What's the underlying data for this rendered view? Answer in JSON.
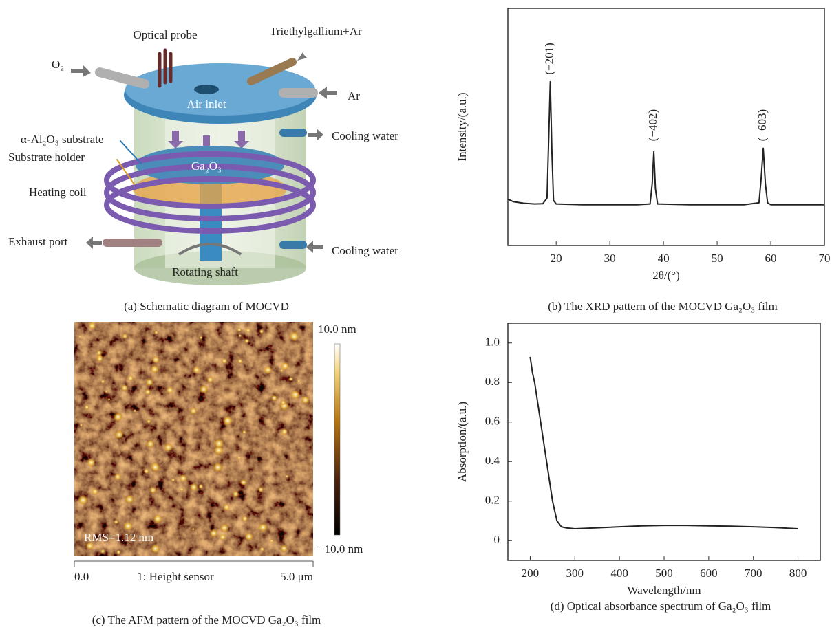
{
  "diagram": {
    "labels": {
      "optical_probe": "Optical probe",
      "triethylgallium": "Triethylgallium+Ar",
      "o2": "O₂",
      "ar": "Ar",
      "air_inlet": "Air inlet",
      "cooling_water_top": "Cooling water",
      "substrate": "α-Al₂O₃ substrate",
      "substrate_holder": "Substrate holder",
      "ga2o3": "Ga₂O₃",
      "heating_coil": "Heating coil",
      "exhaust_port": "Exhaust port",
      "cooling_water_bottom": "Cooling water",
      "rotating_shaft": "Rotating shaft"
    },
    "caption": "(a) Schematic diagram of MOCVD"
  },
  "afm": {
    "scale_max": "10.0 nm",
    "scale_min": "−10.0 nm",
    "rms": "RMS=1.12 nm",
    "axis_start": "0.0",
    "channel": "1: Height sensor",
    "axis_end": "5.0 μm",
    "caption": "(c) The AFM pattern of the MOCVD Ga₂O₃ film"
  },
  "chart_data": [
    {
      "type": "line",
      "caption": "(b) The XRD pattern of the MOCVD Ga₂O₃ film",
      "xlabel": "2θ/(°)",
      "ylabel": "Intensity/(a.u.)",
      "color": "#222222",
      "xlim": [
        11,
        70
      ],
      "ylim": [
        0,
        10
      ],
      "xticks": [
        20,
        30,
        40,
        50,
        60,
        70
      ],
      "x": [
        11,
        12,
        14,
        16,
        17.5,
        18.3,
        18.6,
        18.9,
        19.2,
        19.5,
        20,
        25,
        30,
        35,
        37.5,
        37.9,
        38.2,
        38.5,
        38.9,
        45,
        50,
        55,
        57.8,
        58.2,
        58.6,
        59.0,
        59.4,
        60,
        65,
        70
      ],
      "values": [
        1.95,
        1.85,
        1.78,
        1.75,
        1.76,
        2.0,
        4.5,
        6.9,
        4.0,
        1.9,
        1.75,
        1.72,
        1.72,
        1.72,
        1.75,
        2.6,
        3.95,
        2.4,
        1.75,
        1.72,
        1.72,
        1.72,
        1.8,
        2.8,
        4.1,
        2.6,
        1.8,
        1.72,
        1.72,
        1.72
      ],
      "annotations": [
        {
          "text": "(−201)",
          "x": 18.9,
          "y": 7.2
        },
        {
          "text": "(−402)",
          "x": 38.2,
          "y": 4.4
        },
        {
          "text": "(−603)",
          "x": 58.6,
          "y": 4.4
        }
      ]
    },
    {
      "type": "line",
      "caption": "(d) Optical absorbance spectrum of Ga₂O₃ film",
      "xlabel": "Wavelength/nm",
      "ylabel": "Absorption/(a.u.)",
      "color": "#222222",
      "xlim": [
        150,
        850
      ],
      "ylim": [
        -0.1,
        1.1
      ],
      "xticks": [
        200,
        300,
        400,
        500,
        600,
        700,
        800
      ],
      "yticks": [
        0,
        0.2,
        0.4,
        0.6,
        0.8,
        {
          "value": 1,
          "label": "1.0"
        }
      ],
      "x": [
        200,
        205,
        210,
        220,
        230,
        240,
        250,
        260,
        270,
        280,
        300,
        350,
        400,
        450,
        500,
        550,
        600,
        650,
        700,
        750,
        800
      ],
      "values": [
        0.93,
        0.85,
        0.8,
        0.65,
        0.5,
        0.35,
        0.2,
        0.1,
        0.07,
        0.065,
        0.06,
        0.065,
        0.07,
        0.075,
        0.077,
        0.077,
        0.075,
        0.073,
        0.07,
        0.066,
        0.06
      ]
    }
  ]
}
